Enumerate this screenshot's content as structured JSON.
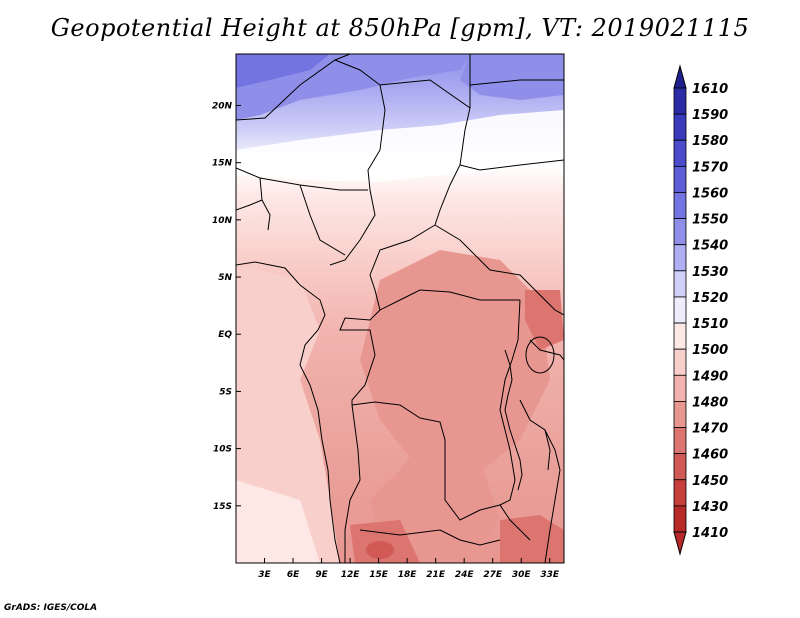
{
  "title": "Geopotential Height at 850hPa [gpm], VT: 2019021115",
  "credit": "GrADS: IGES/COLA",
  "map": {
    "lat_labels": [
      "20N",
      "15N",
      "10N",
      "5N",
      "EQ",
      "5S",
      "10S",
      "15S"
    ],
    "lat_values": [
      20,
      15,
      10,
      5,
      0,
      -5,
      -10,
      -15
    ],
    "lon_labels": [
      "3E",
      "6E",
      "9E",
      "12E",
      "15E",
      "18E",
      "21E",
      "24E",
      "27E",
      "30E",
      "33E"
    ],
    "lon_values": [
      3,
      6,
      9,
      12,
      15,
      18,
      21,
      24,
      27,
      30,
      33
    ]
  },
  "colorbar": {
    "levels": [
      "1610",
      "1590",
      "1580",
      "1570",
      "1560",
      "1550",
      "1540",
      "1530",
      "1520",
      "1510",
      "1500",
      "1490",
      "1480",
      "1470",
      "1460",
      "1450",
      "1430",
      "1410"
    ],
    "colors": [
      "#1f1f8f",
      "#2b2ba6",
      "#3a3abd",
      "#4b4bcc",
      "#5d5dd8",
      "#7373e2",
      "#8f8fea",
      "#aeaef2",
      "#cfcff7",
      "#ececfb",
      "#fde8e6",
      "#f9cfcb",
      "#f2b3ae",
      "#e89690",
      "#dc7570",
      "#d25a56",
      "#c7403e",
      "#b82a2a"
    ]
  }
}
